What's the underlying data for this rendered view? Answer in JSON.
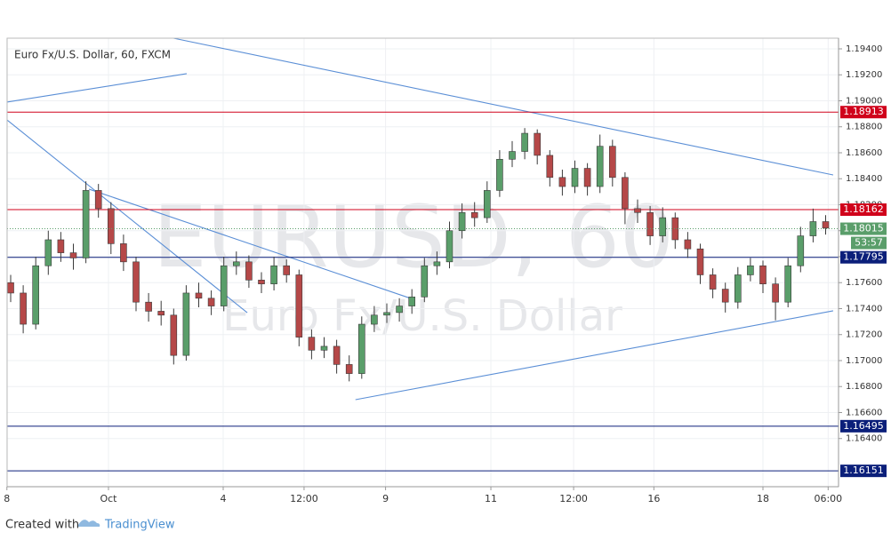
{
  "chart_data": {
    "type": "candlestick",
    "title": "Euro Fx/U.S. Dollar, 60, FXCM",
    "watermark": "EURUSD, 60",
    "watermark_sub": "Euro Fx/U.S. Dollar",
    "footer": {
      "created_with": "Created with",
      "brand": "TradingView"
    },
    "up_color": "#5a9e6a",
    "down_color": "#b54848",
    "wick_color": "#3a3a3a",
    "ylim": [
      1.16029,
      1.19482
    ],
    "yticks": [
      {
        "value": 1.194,
        "label": "1.19400"
      },
      {
        "value": 1.192,
        "label": "1.19200"
      },
      {
        "value": 1.19,
        "label": "1.19000"
      },
      {
        "value": 1.188,
        "label": "1.18800"
      },
      {
        "value": 1.186,
        "label": "1.18600"
      },
      {
        "value": 1.184,
        "label": "1.18400"
      },
      {
        "value": 1.182,
        "label": "1.18200"
      },
      {
        "value": 1.18,
        "label": "1.18000"
      },
      {
        "value": 1.178,
        "label": "1.17800"
      },
      {
        "value": 1.176,
        "label": "1.17600"
      },
      {
        "value": 1.174,
        "label": "1.17400"
      },
      {
        "value": 1.172,
        "label": "1.17200"
      },
      {
        "value": 1.17,
        "label": "1.17000"
      },
      {
        "value": 1.168,
        "label": "1.16800"
      },
      {
        "value": 1.166,
        "label": "1.16600"
      },
      {
        "value": 1.164,
        "label": "1.16400"
      }
    ],
    "grid": true,
    "x_labels": [
      {
        "index": -0.3,
        "label": "8"
      },
      {
        "index": 7.8,
        "label": "Oct"
      },
      {
        "index": 16.95,
        "label": "4"
      },
      {
        "index": 23.4,
        "label": "12:00"
      },
      {
        "index": 29.9,
        "label": "9"
      },
      {
        "index": 38.3,
        "label": "11"
      },
      {
        "index": 44.9,
        "label": "12:00"
      },
      {
        "index": 51.3,
        "label": "16"
      },
      {
        "index": 60,
        "label": "18"
      },
      {
        "index": 65.2,
        "label": "06:00"
      }
    ],
    "open": [
      1.176,
      1.1752,
      1.1728,
      1.1773,
      1.1793,
      1.1783,
      1.1779,
      1.1831,
      1.1817,
      1.179,
      1.1776,
      1.1745,
      1.1738,
      1.1735,
      1.1704,
      1.1752,
      1.1748,
      1.1742,
      1.1773,
      1.1776,
      1.1762,
      1.1759,
      1.1773,
      1.1766,
      1.1718,
      1.1708,
      1.1711,
      1.1697,
      1.169,
      1.1728,
      1.1735,
      1.1737,
      1.1742,
      1.1749,
      1.1773,
      1.1776,
      1.18,
      1.1814,
      1.181,
      1.1831,
      1.1855,
      1.1861,
      1.1875,
      1.1858,
      1.1841,
      1.1834,
      1.1848,
      1.1834,
      1.1865,
      1.1841,
      1.1817,
      1.1814,
      1.1796,
      1.181,
      1.1793,
      1.1786,
      1.1766,
      1.1755,
      1.1745,
      1.1766,
      1.1773,
      1.1759,
      1.1745,
      1.1773,
      1.1796,
      1.1807
    ],
    "high": [
      1.1766,
      1.1758,
      1.178,
      1.18,
      1.1799,
      1.179,
      1.1838,
      1.1836,
      1.1822,
      1.1797,
      1.178,
      1.1752,
      1.1746,
      1.174,
      1.1758,
      1.176,
      1.1754,
      1.178,
      1.1784,
      1.1781,
      1.1768,
      1.178,
      1.1778,
      1.177,
      1.1724,
      1.1718,
      1.1716,
      1.1704,
      1.1734,
      1.1742,
      1.1744,
      1.1748,
      1.1755,
      1.1779,
      1.1784,
      1.1807,
      1.1821,
      1.1822,
      1.1838,
      1.1862,
      1.1869,
      1.1879,
      1.1878,
      1.1862,
      1.1847,
      1.1854,
      1.1852,
      1.1874,
      1.187,
      1.1845,
      1.1824,
      1.1819,
      1.1818,
      1.1814,
      1.1799,
      1.179,
      1.1771,
      1.176,
      1.1772,
      1.1779,
      1.1777,
      1.1764,
      1.1779,
      1.1803,
      1.1817,
      1.1812
    ],
    "low": [
      1.1745,
      1.1721,
      1.1724,
      1.1766,
      1.1776,
      1.177,
      1.1775,
      1.181,
      1.1782,
      1.1769,
      1.1738,
      1.173,
      1.1727,
      1.1697,
      1.17,
      1.1741,
      1.1735,
      1.1738,
      1.1766,
      1.1756,
      1.1752,
      1.1754,
      1.176,
      1.1711,
      1.1701,
      1.1702,
      1.169,
      1.1684,
      1.1686,
      1.1722,
      1.1729,
      1.173,
      1.1736,
      1.1745,
      1.1766,
      1.1771,
      1.1794,
      1.1803,
      1.1806,
      1.1826,
      1.1849,
      1.1855,
      1.1851,
      1.1834,
      1.1827,
      1.1829,
      1.1827,
      1.1829,
      1.1834,
      1.1805,
      1.1806,
      1.1789,
      1.1791,
      1.1786,
      1.1779,
      1.1759,
      1.1748,
      1.1737,
      1.174,
      1.1761,
      1.1752,
      1.1731,
      1.1741,
      1.1768,
      1.1791,
      1.1797
    ],
    "close": [
      1.1752,
      1.1728,
      1.1773,
      1.1793,
      1.1783,
      1.1779,
      1.1831,
      1.1817,
      1.179,
      1.1776,
      1.1745,
      1.1738,
      1.1735,
      1.1704,
      1.1752,
      1.1748,
      1.1742,
      1.1773,
      1.1776,
      1.1762,
      1.1759,
      1.1773,
      1.1766,
      1.1718,
      1.1708,
      1.1711,
      1.1697,
      1.169,
      1.1728,
      1.1735,
      1.1737,
      1.1742,
      1.1749,
      1.1773,
      1.1776,
      1.18,
      1.1814,
      1.181,
      1.1831,
      1.1855,
      1.1861,
      1.1875,
      1.1858,
      1.1841,
      1.1834,
      1.1848,
      1.1834,
      1.1865,
      1.1841,
      1.1817,
      1.1814,
      1.1796,
      1.181,
      1.1793,
      1.1786,
      1.1766,
      1.1755,
      1.1745,
      1.1766,
      1.1773,
      1.1759,
      1.1745,
      1.1773,
      1.1796,
      1.1807,
      1.1802
    ],
    "levels": [
      {
        "value": 1.18913,
        "color": "#d0021b"
      },
      {
        "value": 1.18162,
        "color": "#d0021b"
      },
      {
        "value": 1.17795,
        "color": "#0b1f7a"
      },
      {
        "value": 1.16495,
        "color": "#0b1f7a"
      },
      {
        "value": 1.16151,
        "color": "#0b1f7a"
      }
    ],
    "current": {
      "value": 1.18015,
      "countdown": "53:57",
      "color": "#5a9e6a"
    },
    "trendlines": [
      {
        "x": [
          12.98,
          65.6
        ],
        "y": [
          1.19482,
          1.18429
        ]
      },
      {
        "x": [
          -0.3,
          14.04
        ],
        "y": [
          1.1899,
          1.19209
        ]
      },
      {
        "x": [
          -0.3,
          18.87
        ],
        "y": [
          1.18853,
          1.17369
        ]
      },
      {
        "x": [
          6.24,
          31.9
        ],
        "y": [
          1.1832,
          1.17479
        ]
      },
      {
        "x": [
          27.5,
          65.6
        ],
        "y": [
          1.16699,
          1.17383
        ]
      }
    ],
    "trendline_color": "#5b8fd6"
  }
}
